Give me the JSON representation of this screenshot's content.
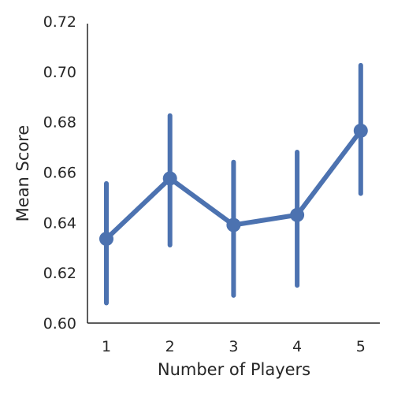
{
  "chart_data": {
    "type": "line",
    "xlabel": "Number of Players",
    "ylabel": "Mean Score",
    "categories": [
      "1",
      "2",
      "3",
      "4",
      "5"
    ],
    "ylim": [
      0.6,
      0.72
    ],
    "yticks": [
      "0.60",
      "0.62",
      "0.64",
      "0.66",
      "0.68",
      "0.70",
      "0.72"
    ],
    "grid": false,
    "series": [
      {
        "values": [
          0.6335,
          0.6575,
          0.639,
          0.643,
          0.6765
        ],
        "ci_low": [
          0.608,
          0.631,
          0.611,
          0.615,
          0.6515
        ],
        "ci_high": [
          0.6555,
          0.6825,
          0.664,
          0.668,
          0.7025
        ],
        "color": "#4c72b0"
      }
    ]
  }
}
